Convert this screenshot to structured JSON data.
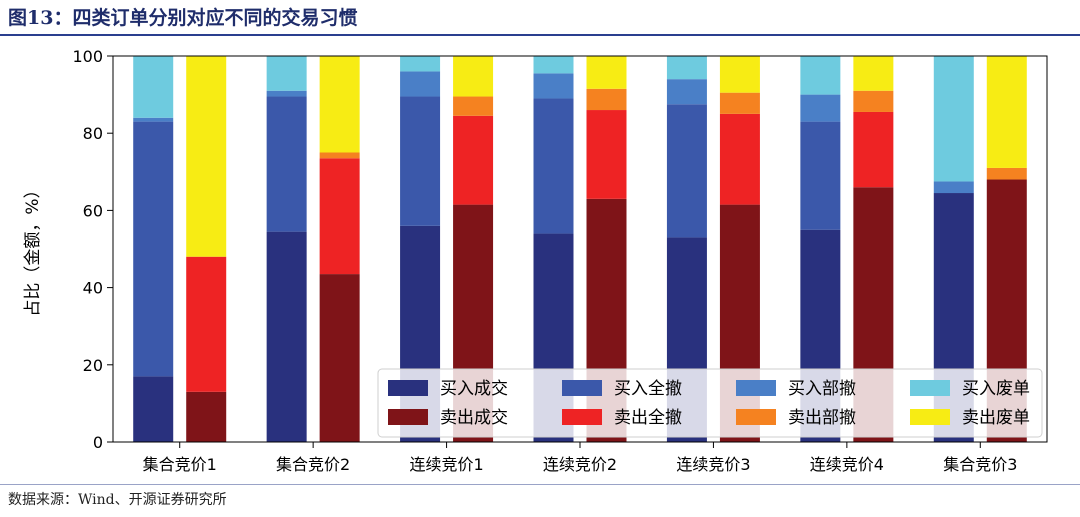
{
  "header": {
    "title": "图13：四类订单分别对应不同的交易习惯"
  },
  "footer": {
    "source": "数据来源：Wind、开源证券研究所"
  },
  "chart_data": {
    "type": "bar",
    "stacked": true,
    "ylabel": "占比（金额，%）",
    "ylim": [
      0,
      100
    ],
    "yticks": [
      0,
      20,
      40,
      60,
      80,
      100
    ],
    "grid": false,
    "legend_position": "bottom-right",
    "categories": [
      "集合竞价1",
      "集合竞价2",
      "连续竞价1",
      "连续竞价2",
      "连续竞价3",
      "连续竞价4",
      "集合竞价3"
    ],
    "bar_groups": [
      {
        "side": "buy",
        "series": [
          {
            "name": "买入成交",
            "color": "#29317e",
            "values": [
              17,
              54.5,
              56,
              54,
              53,
              55,
              64.5
            ]
          },
          {
            "name": "买入全撤",
            "color": "#3b58aa",
            "values": [
              66,
              35,
              33.5,
              35,
              34.5,
              28,
              0
            ]
          },
          {
            "name": "买入部撤",
            "color": "#4a7fc7",
            "values": [
              1,
              1.5,
              6.5,
              6.5,
              6.5,
              7,
              3
            ]
          },
          {
            "name": "买入废单",
            "color": "#6ecbdf",
            "values": [
              16,
              9,
              4,
              4.5,
              6,
              10,
              32.5
            ]
          }
        ]
      },
      {
        "side": "sell",
        "series": [
          {
            "name": "卖出成交",
            "color": "#7f1418",
            "values": [
              13,
              43.5,
              61.5,
              63,
              61.5,
              66,
              68
            ]
          },
          {
            "name": "卖出全撤",
            "color": "#ee2324",
            "values": [
              35,
              30,
              23,
              23,
              23.5,
              19.5,
              0
            ]
          },
          {
            "name": "卖出部撤",
            "color": "#f58220",
            "values": [
              0,
              1.5,
              5,
              5.5,
              5.5,
              5.5,
              3
            ]
          },
          {
            "name": "卖出废单",
            "color": "#f7ec14",
            "values": [
              52,
              25,
              10.5,
              8.5,
              9.5,
              9,
              29
            ]
          }
        ]
      }
    ]
  }
}
